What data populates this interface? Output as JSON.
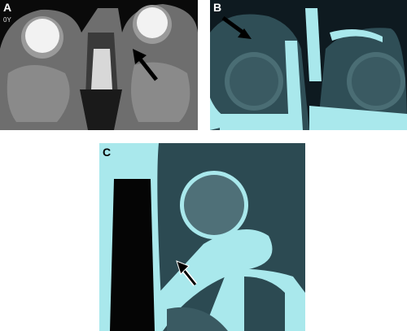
{
  "panels": [
    {
      "label": "A",
      "annotation": "0Y"
    },
    {
      "label": "B"
    },
    {
      "label": "C"
    }
  ]
}
